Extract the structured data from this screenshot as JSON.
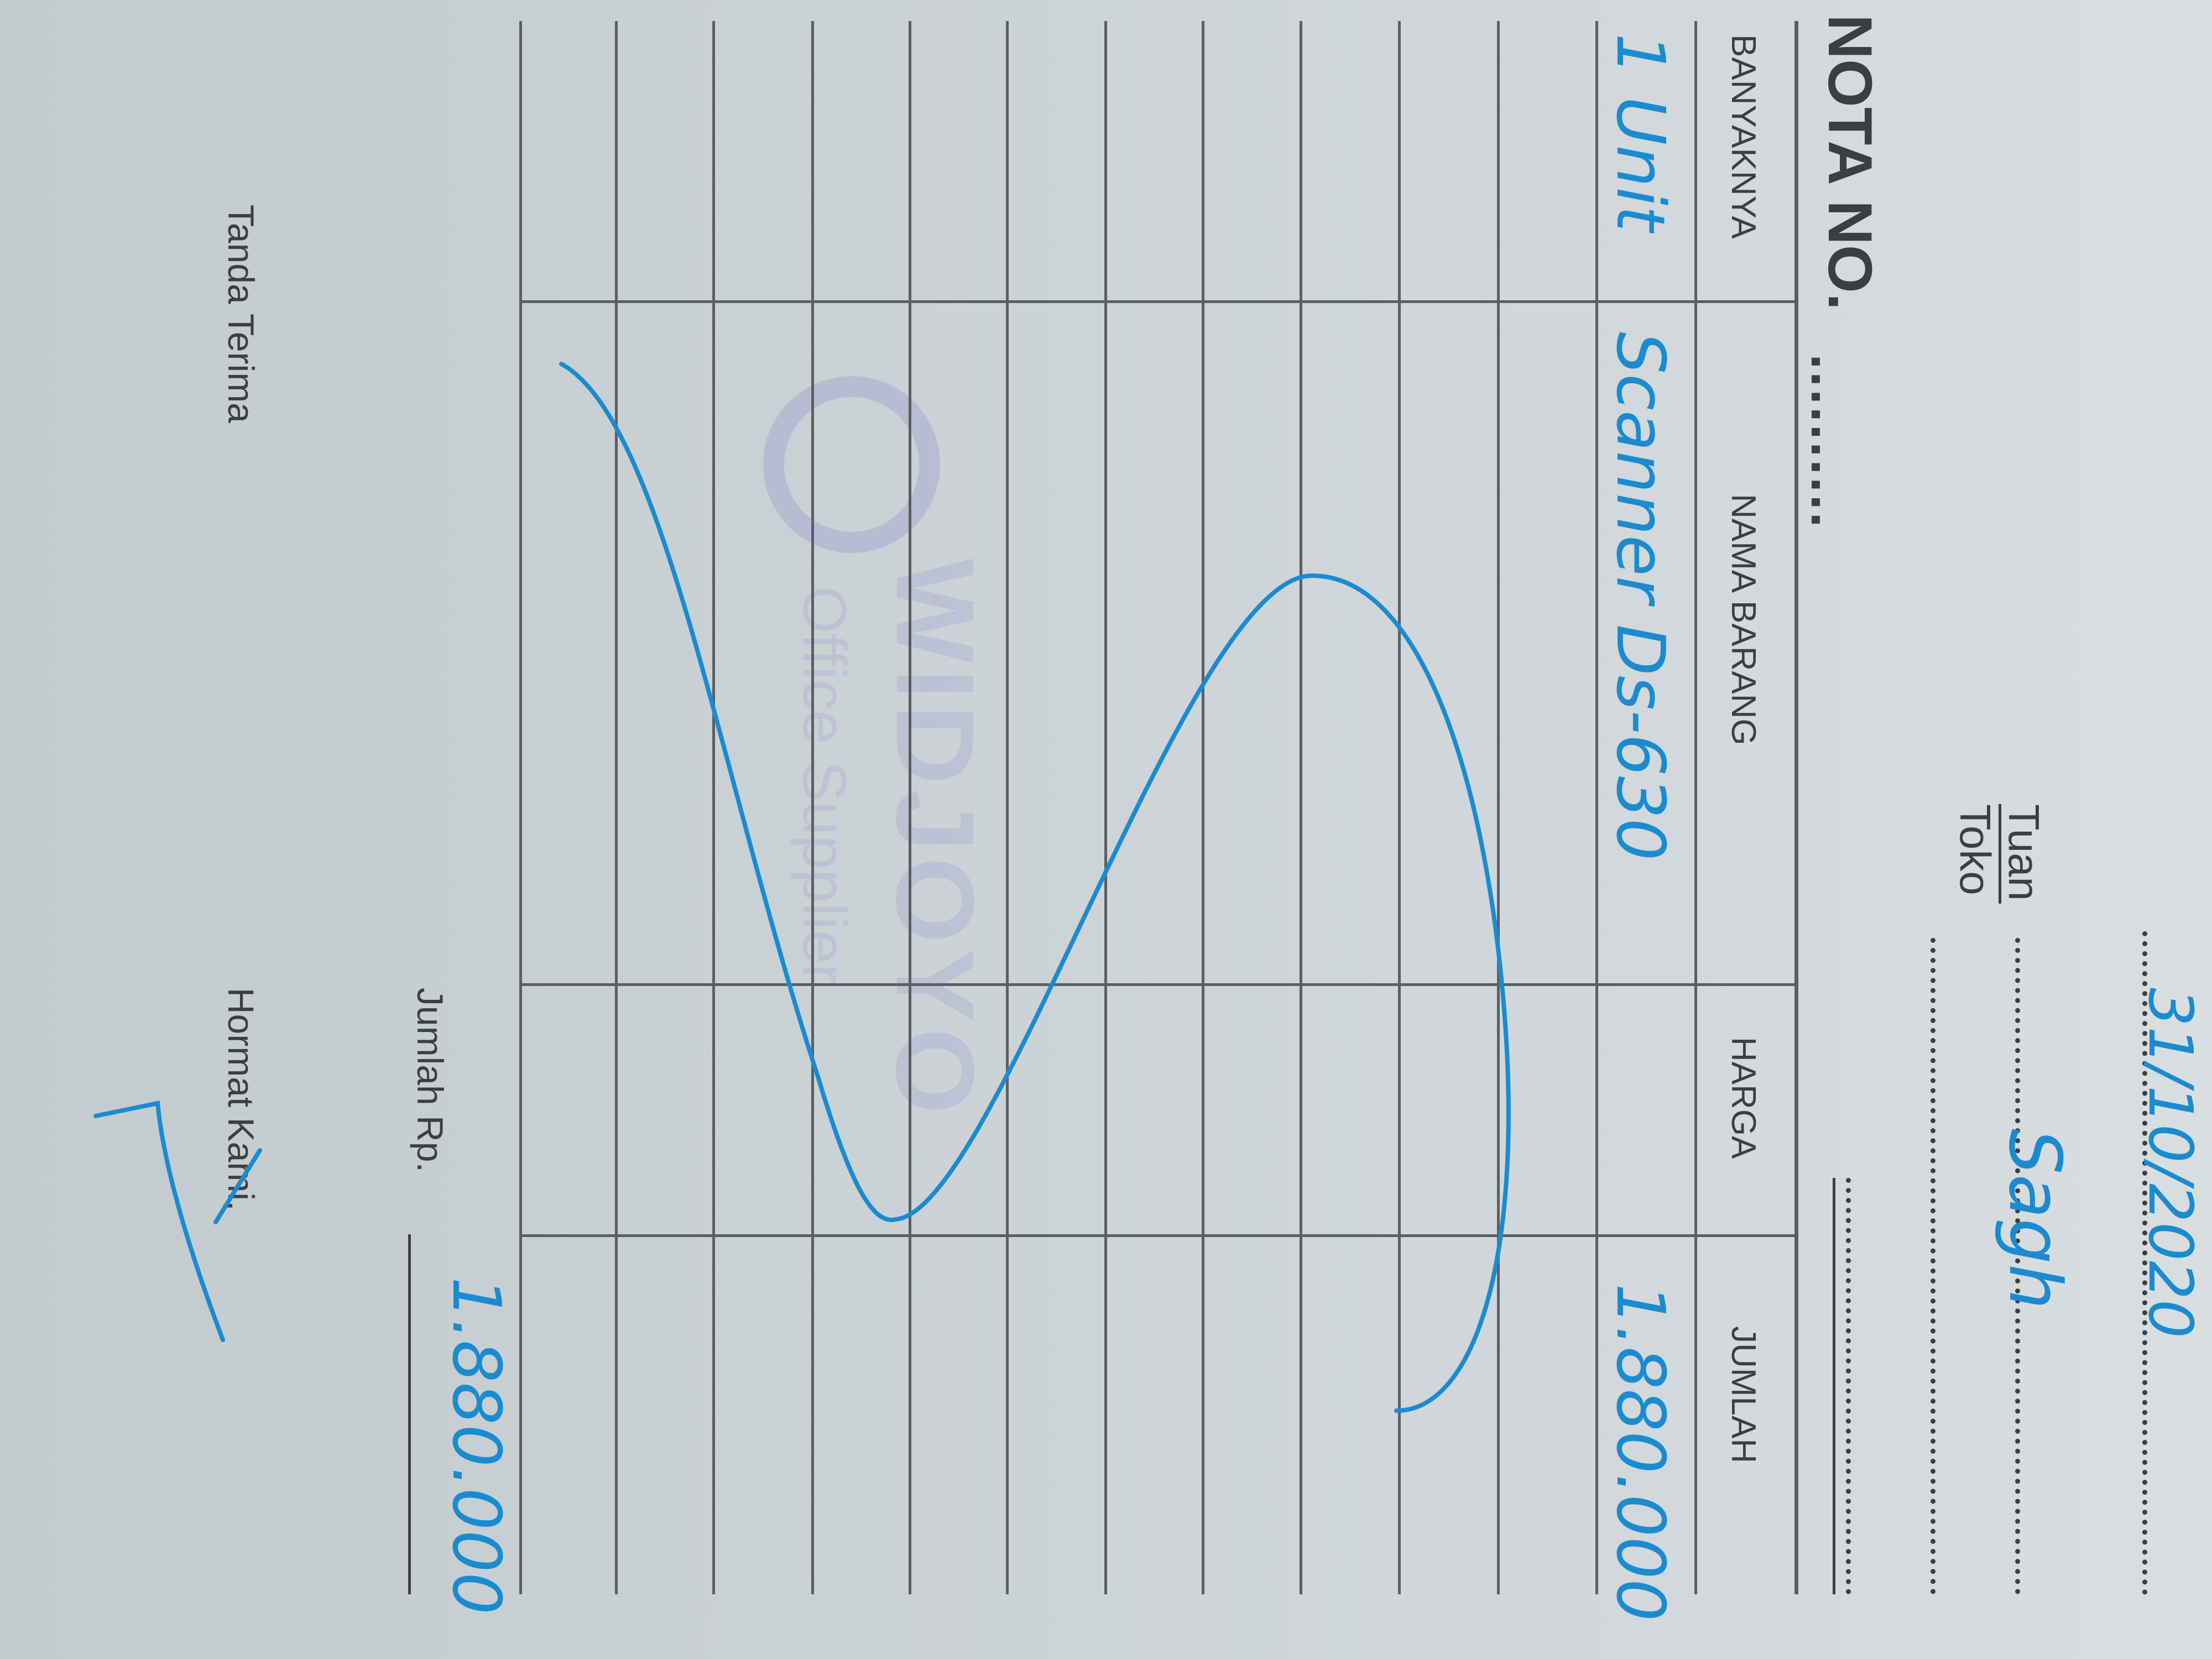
{
  "header": {
    "title": "NOTA NO.",
    "title_dots": "..........",
    "date": "31/10/2020",
    "tuan_label": "Tuan",
    "toko_label": "Toko",
    "customer": "Sagh"
  },
  "table": {
    "columns": [
      "BANYAKNYA",
      "NAMA BARANG",
      "HARGA",
      "JUMLAH"
    ],
    "rows": [
      {
        "banyaknya": "1 Unit",
        "nama_barang": "Scanner Ds-630",
        "harga": "",
        "jumlah": "1.880.000"
      }
    ]
  },
  "total": {
    "label": "Jumlah Rp.",
    "value": "1.880.000"
  },
  "footer": {
    "received_label": "Tanda Terima",
    "regards_label": "Hormat Kami,"
  },
  "stamp": {
    "name": "WIDJOYO",
    "subtitle": "Office Supplier"
  },
  "colors": {
    "ink": "#1b8bd0",
    "print": "#3b3f44",
    "paper": "#cbd2d5",
    "stamp": "#9aa0d0"
  }
}
